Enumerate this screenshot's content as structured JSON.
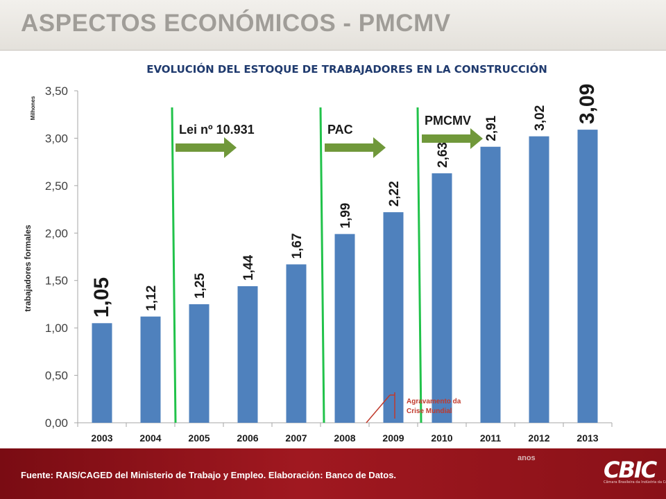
{
  "header": {
    "title": "ASPECTOS ECONÓMICOS - PMCMV"
  },
  "footer": {
    "source": "Fuente: RAIS/CAGED del Ministerio de Trabajo y Empleo. Elaboración: Banco de Datos.",
    "anos_label": "anos",
    "logo_text": "CBIC",
    "logo_subtext": "Câmara Brasileira da Indústria da Construção"
  },
  "colors": {
    "bar": "#4f81bd",
    "arrow": "#70983a",
    "divider": "#21c24a",
    "crisis": "#c0392b",
    "footer": "#9b1a1f",
    "title": "#1f3a6e",
    "header_text": "#a09d98"
  },
  "chart_data": {
    "type": "bar",
    "title": "EVOLUCIÓN DEL ESTOQUE DE TRABAJADORES EN LA CONSTRUCCIÓN",
    "xlabel": "anos",
    "ylabel": "trabajadores formales",
    "y_unit_label": "Milhones",
    "categories": [
      "2003",
      "2004",
      "2005",
      "2006",
      "2007",
      "2008",
      "2009",
      "2010",
      "2011",
      "2012",
      "2013"
    ],
    "values": [
      1.05,
      1.12,
      1.25,
      1.44,
      1.67,
      1.99,
      2.22,
      2.63,
      2.91,
      3.02,
      3.09
    ],
    "value_labels": [
      "1,05",
      "1,12",
      "1,25",
      "1,44",
      "1,67",
      "1,99",
      "2,22",
      "2,63",
      "2,91",
      "3,02",
      "3,09"
    ],
    "ylim": [
      0,
      3.5
    ],
    "yticks": [
      "0,00",
      "0,50",
      "1,00",
      "1,50",
      "2,00",
      "2,50",
      "3,00",
      "3,50"
    ],
    "grid": false,
    "legend": "none",
    "annotations": [
      {
        "type": "period",
        "label": "Lei nº 10.931",
        "after_category": "2004"
      },
      {
        "type": "period",
        "label": "PAC",
        "after_category": "2007"
      },
      {
        "type": "period",
        "label": "PMCMV",
        "after_category": "2009"
      },
      {
        "type": "event",
        "label_line1": "Agravamento da",
        "label_line2": "Crise Mundial",
        "category": "2009"
      }
    ]
  }
}
